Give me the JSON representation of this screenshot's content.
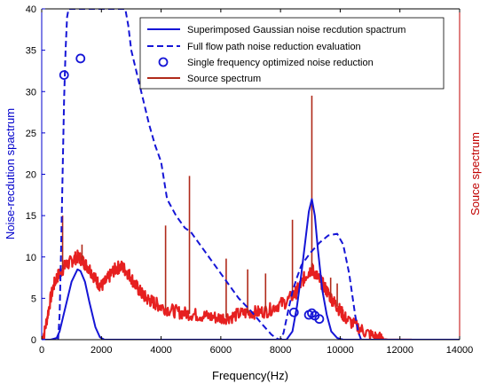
{
  "chart_data": {
    "type": "line",
    "xlabel": "Frequency(Hz)",
    "ylabel_left": "Noise-recdution spactrum",
    "ylabel_right": "Souce spectrum",
    "xlim": [
      0,
      14000
    ],
    "ylim_left": [
      0,
      40
    ],
    "x_ticks": [
      "0",
      "2000",
      "4000",
      "6000",
      "8000",
      "10000",
      "12000",
      "14000"
    ],
    "y_ticks_left": [
      "0",
      "5",
      "10",
      "15",
      "20",
      "25",
      "30",
      "35",
      "40"
    ],
    "grid": false,
    "legend_position": "top-right",
    "colors": {
      "left_axis": "#0000cc",
      "right_axis": "#c00000",
      "gaussian": "#1515d6",
      "full_flow": "#1515d6",
      "single": "#1515d6",
      "source": "#e62020",
      "source_peaks": "#b02a1a"
    },
    "series": [
      {
        "name": "Superimposed Gaussian noise recdution spactrum",
        "style": "solid",
        "x": [
          0,
          300,
          500,
          600,
          800,
          1000,
          1200,
          1300,
          1450,
          1600,
          1800,
          1950,
          2100,
          8200,
          8400,
          8550,
          8700,
          8850,
          8950,
          9050,
          9150,
          9250,
          9400,
          9550,
          9700,
          9900,
          10100,
          14000
        ],
        "y": [
          0,
          0,
          0.2,
          1,
          4,
          7,
          8.5,
          8.3,
          7,
          4.5,
          1.5,
          0.3,
          0,
          0,
          1,
          4,
          8,
          12.5,
          15.5,
          17,
          15,
          11,
          6,
          3,
          1,
          0.2,
          0,
          0
        ]
      },
      {
        "name": "Full flow path noise reduction evaluation",
        "style": "dashed",
        "x": [
          550,
          600,
          650,
          700,
          750,
          800,
          850,
          900,
          1000,
          1100,
          2800,
          2900,
          3000,
          3200,
          3400,
          3600,
          3800,
          4000,
          4200,
          4500,
          4800,
          5000,
          5200,
          5500,
          5800,
          6000,
          6300,
          6600,
          7000,
          7400,
          7700,
          7900,
          8000,
          8100,
          8200,
          8300,
          8400,
          8550,
          8700,
          9000,
          9300,
          9600,
          9900,
          10100,
          10300,
          10500,
          10600,
          10700
        ],
        "y": [
          0,
          3,
          11,
          20,
          29,
          35,
          39,
          40,
          40,
          40,
          40,
          38,
          35,
          32,
          29,
          26,
          23.5,
          21.5,
          17,
          15,
          13.5,
          13,
          12,
          10.5,
          9,
          8,
          6.5,
          5,
          3.5,
          1.8,
          0.6,
          0.1,
          0,
          0.8,
          2.5,
          4.2,
          5.8,
          7.5,
          9,
          10.5,
          11.7,
          12.6,
          12.8,
          11.5,
          8,
          3,
          1,
          0
        ]
      },
      {
        "name": "Single frequency optimized noise reduction",
        "style": "markers",
        "x": [
          750,
          1300,
          8450,
          8950,
          9050,
          9150,
          9300
        ],
        "y": [
          32,
          34,
          3.3,
          3,
          3.2,
          2.9,
          2.5
        ]
      },
      {
        "name": "Source spectrum",
        "style": "solid",
        "x": [
          0,
          100,
          200,
          300,
          400,
          500,
          600,
          700,
          800,
          900,
          1000,
          1100,
          1200,
          1300,
          1400,
          1500,
          1600,
          1700,
          1800,
          1900,
          2000,
          2100,
          2200,
          2300,
          2400,
          2500,
          2600,
          2700,
          2800,
          2900,
          3000,
          3100,
          3200,
          3300,
          3400,
          3500,
          3600,
          3700,
          3800,
          3900,
          4000,
          4200,
          4400,
          4600,
          4800,
          5000,
          5200,
          5400,
          5600,
          5800,
          6000,
          6200,
          6400,
          6600,
          6800,
          7000,
          7200,
          7400,
          7600,
          7800,
          8000,
          8200,
          8400,
          8500,
          8600,
          8700,
          8800,
          8900,
          9000,
          9050,
          9100,
          9200,
          9300,
          9400,
          9500,
          9600,
          9700,
          9800,
          9900,
          10000,
          10100,
          10200,
          10400,
          10600,
          10800,
          11000,
          11200,
          11400,
          11600,
          11800,
          12000,
          12200,
          12400
        ],
        "y": [
          0,
          1,
          3,
          5,
          6.5,
          7.5,
          8,
          8.5,
          9,
          9.2,
          9.5,
          9.8,
          10,
          9.8,
          9.4,
          9,
          8.6,
          8,
          7.3,
          6.8,
          6.5,
          6.8,
          7.3,
          7.8,
          8.3,
          8.6,
          8.8,
          8.8,
          8.4,
          8,
          7.5,
          6.8,
          6.3,
          5.8,
          5.4,
          5,
          4.8,
          4.6,
          4.4,
          4.2,
          4,
          3.7,
          3.5,
          3.3,
          3.2,
          3.1,
          3,
          2.9,
          2.8,
          2.7,
          2.6,
          2.7,
          2.8,
          3.1,
          3.2,
          3.3,
          3.3,
          3.4,
          3.5,
          4,
          4.3,
          4.6,
          5.3,
          5.6,
          6.2,
          6.8,
          7.5,
          8,
          8.4,
          8.5,
          8.3,
          7.8,
          7.2,
          6.8,
          6.2,
          5.6,
          5,
          4.5,
          4,
          3.5,
          3,
          2.5,
          2,
          1.5,
          1,
          0.6,
          0.3,
          0.1,
          0,
          0,
          0,
          0,
          0
        ]
      }
    ],
    "source_peaks": [
      {
        "x": 700,
        "y": 15
      },
      {
        "x": 1350,
        "y": 11.5
      },
      {
        "x": 4150,
        "y": 13.8
      },
      {
        "x": 4950,
        "y": 19.8
      },
      {
        "x": 6180,
        "y": 9.8
      },
      {
        "x": 6900,
        "y": 8.5
      },
      {
        "x": 7500,
        "y": 8
      },
      {
        "x": 8400,
        "y": 14.5
      },
      {
        "x": 9050,
        "y": 29.5
      },
      {
        "x": 9680,
        "y": 7.5
      },
      {
        "x": 9900,
        "y": 6.8
      }
    ]
  }
}
